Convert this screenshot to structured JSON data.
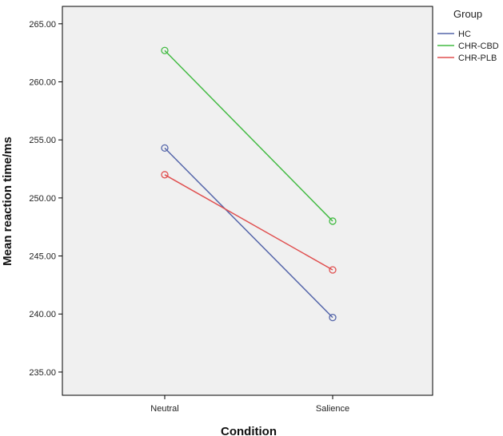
{
  "chart_data": {
    "type": "line",
    "categories": [
      "Neutral",
      "Salience"
    ],
    "xlabel": "Condition",
    "ylabel": "Mean reaction time/ms",
    "ylim": [
      233,
      266.5
    ],
    "yticks": [
      "235.00",
      "240.00",
      "245.00",
      "250.00",
      "255.00",
      "260.00",
      "265.00"
    ],
    "ytick_values": [
      235,
      240,
      245,
      250,
      255,
      260,
      265
    ],
    "legend_title": "Group",
    "legend_position": "right",
    "grid": false,
    "series": [
      {
        "name": "HC",
        "color": "#5566aa",
        "values": [
          254.3,
          239.7
        ]
      },
      {
        "name": "CHR-CBD",
        "color": "#44bb44",
        "values": [
          262.7,
          248.0
        ]
      },
      {
        "name": "CHR-PLB",
        "color": "#e05050",
        "values": [
          252.0,
          243.8
        ]
      }
    ]
  }
}
